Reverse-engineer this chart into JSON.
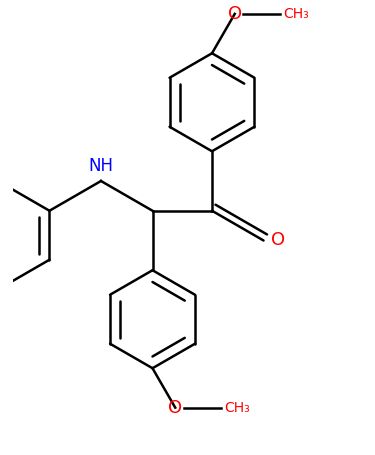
{
  "bg_color": "#ffffff",
  "bond_color": "#000000",
  "nh_color": "#0000ff",
  "o_color": "#ff0000",
  "bond_width": 1.8,
  "figsize": [
    3.75,
    4.55
  ],
  "dpi": 100,
  "xlim": [
    -2.5,
    2.5
  ],
  "ylim": [
    -3.2,
    3.2
  ]
}
